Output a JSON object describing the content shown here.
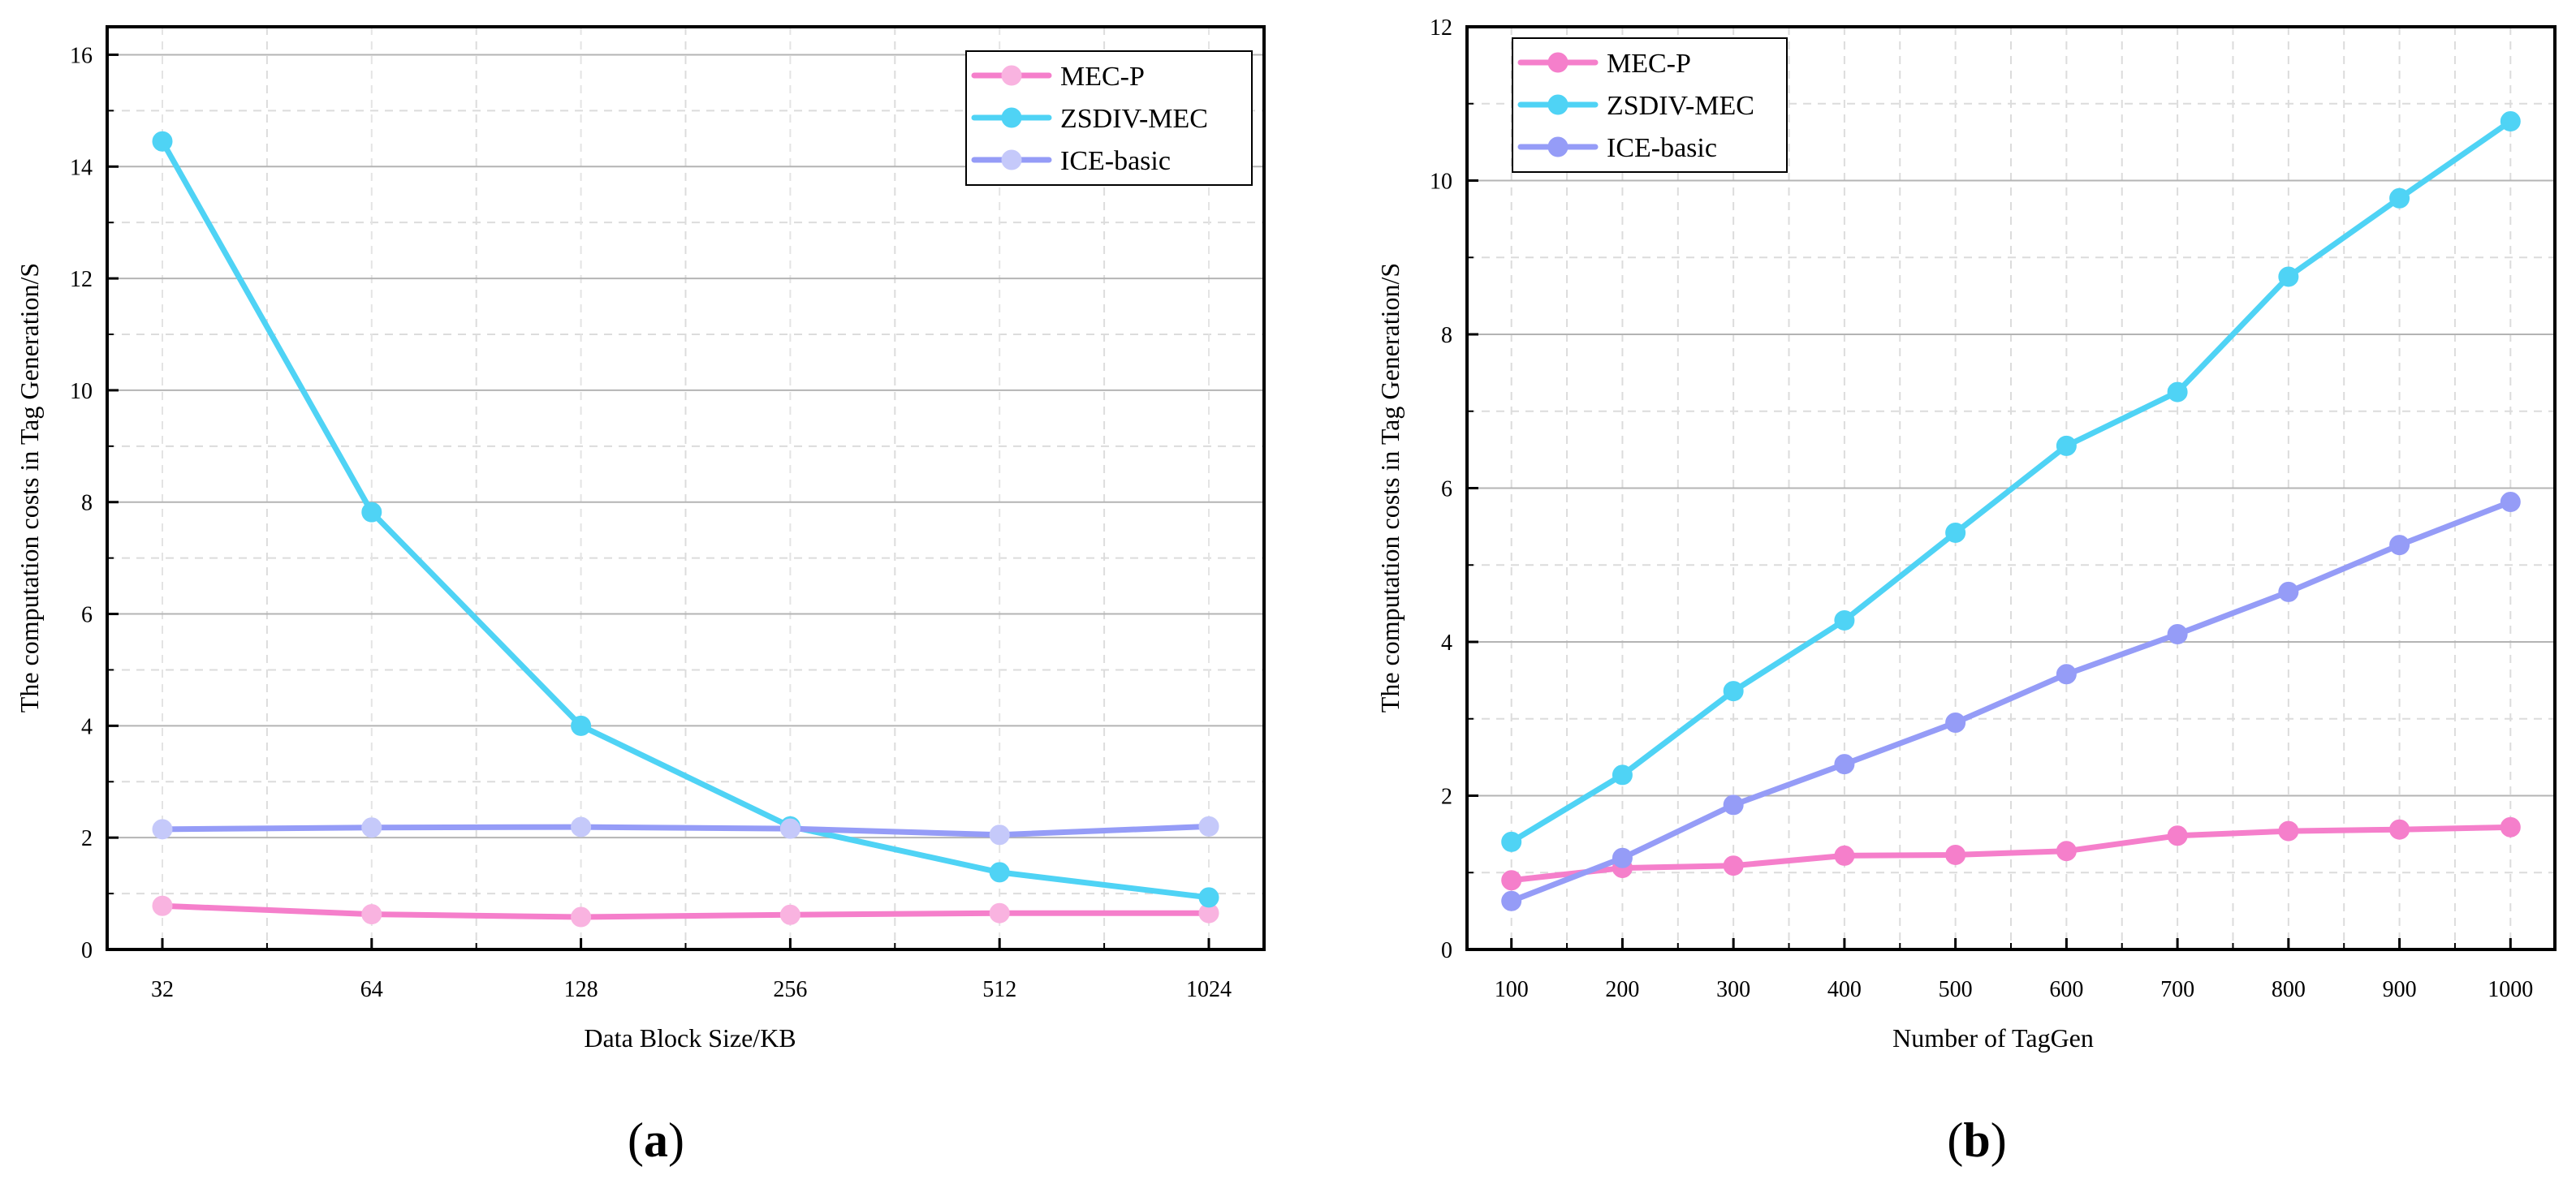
{
  "chart_data": [
    {
      "panel": "(a)",
      "panel_label": {
        "open": "(",
        "letter": "a",
        "close": ")"
      },
      "type": "line",
      "title": "",
      "xlabel": "Data Block Size/KB",
      "ylabel": "The computation costs in Tag Generation/S",
      "x_scale": "log2",
      "categories": [
        "32",
        "64",
        "128",
        "256",
        "512",
        "1024"
      ],
      "x": [
        32,
        64,
        128,
        256,
        512,
        1024
      ],
      "ylim": [
        0,
        16.5
      ],
      "yticks": [
        0,
        2,
        4,
        6,
        8,
        10,
        12,
        14,
        16
      ],
      "ytick_labels": [
        "0",
        "2",
        "4",
        "6",
        "8",
        "10",
        "12",
        "14",
        "16"
      ],
      "xtick_labels": [
        "32",
        "64",
        "128",
        "256",
        "512",
        "1024"
      ],
      "grid": true,
      "legend_position": "top-right",
      "series": [
        {
          "name": "MEC-P",
          "color": "#f57fcb",
          "marker_color": "#f9b3e0",
          "values": [
            0.78,
            0.63,
            0.58,
            0.62,
            0.65,
            0.65
          ]
        },
        {
          "name": "ZSDIV-MEC",
          "color": "#4fd3f5",
          "marker_color": "#4fd3f5",
          "values": [
            14.45,
            7.82,
            4.0,
            2.2,
            1.38,
            0.93
          ]
        },
        {
          "name": "ICE-basic",
          "color": "#959cf7",
          "marker_color": "#c5c9fa",
          "values": [
            2.15,
            2.18,
            2.19,
            2.16,
            2.05,
            2.2
          ]
        }
      ]
    },
    {
      "panel": "(b)",
      "panel_label": {
        "open": "(",
        "letter": "b",
        "close": ")"
      },
      "type": "line",
      "title": "",
      "xlabel": "Number of TagGen",
      "ylabel": "The computation costs in Tag Generation/S",
      "x_scale": "linear",
      "categories": [
        "100",
        "200",
        "300",
        "400",
        "500",
        "600",
        "700",
        "800",
        "900",
        "1000"
      ],
      "x": [
        100,
        200,
        300,
        400,
        500,
        600,
        700,
        800,
        900,
        1000
      ],
      "xlim": [
        60,
        1040
      ],
      "ylim": [
        0,
        12
      ],
      "yticks": [
        0,
        2,
        4,
        6,
        8,
        10,
        12
      ],
      "ytick_labels": [
        "0",
        "2",
        "4",
        "6",
        "8",
        "10",
        "12"
      ],
      "xtick_labels": [
        "100",
        "200",
        "300",
        "400",
        "500",
        "600",
        "700",
        "800",
        "900",
        "1000"
      ],
      "grid": true,
      "legend_position": "top-left",
      "series": [
        {
          "name": "MEC-P",
          "color": "#f57fcb",
          "marker_color": "#f57fcb",
          "values": [
            0.9,
            1.06,
            1.09,
            1.22,
            1.23,
            1.28,
            1.48,
            1.54,
            1.56,
            1.59
          ]
        },
        {
          "name": "ZSDIV-MEC",
          "color": "#4fd3f5",
          "marker_color": "#4fd3f5",
          "values": [
            1.4,
            2.27,
            3.36,
            4.28,
            5.42,
            6.55,
            7.25,
            8.75,
            9.77,
            10.77
          ]
        },
        {
          "name": "ICE-basic",
          "color": "#959cf7",
          "marker_color": "#959cf7",
          "values": [
            0.63,
            1.19,
            1.88,
            2.41,
            2.95,
            3.58,
            4.1,
            4.65,
            5.26,
            5.82
          ]
        }
      ]
    }
  ]
}
